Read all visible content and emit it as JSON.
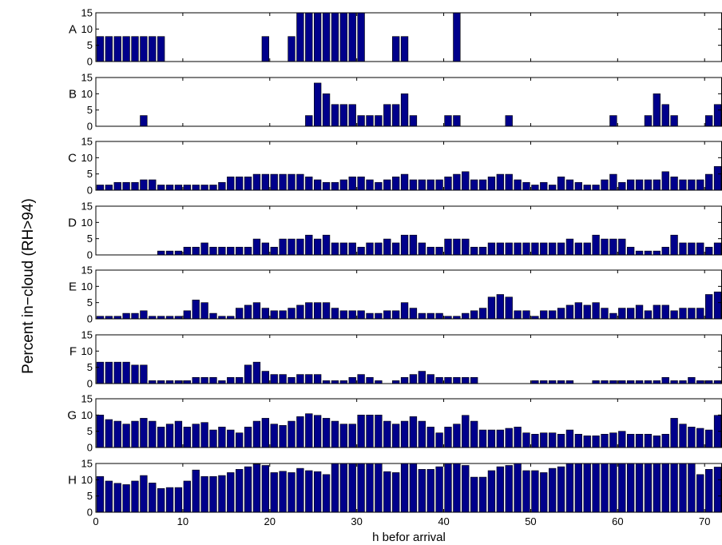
{
  "chart_data": {
    "type": "bar",
    "xlabel": "h befor arrival",
    "ylabel": "Percent in−cloud (RH>94)",
    "x": [
      0.5,
      1.5,
      2.5,
      3.5,
      4.5,
      5.5,
      6.5,
      7.5,
      8.5,
      9.5,
      10.5,
      11.5,
      12.5,
      13.5,
      14.5,
      15.5,
      16.5,
      17.5,
      18.5,
      19.5,
      20.5,
      21.5,
      22.5,
      23.5,
      24.5,
      25.5,
      26.5,
      27.5,
      28.5,
      29.5,
      30.5,
      31.5,
      32.5,
      33.5,
      34.5,
      35.5,
      36.5,
      37.5,
      38.5,
      39.5,
      40.5,
      41.5,
      42.5,
      43.5,
      44.5,
      45.5,
      46.5,
      47.5,
      48.5,
      49.5,
      50.5,
      51.5,
      52.5,
      53.5,
      54.5,
      55.5,
      56.5,
      57.5,
      58.5,
      59.5,
      60.5,
      61.5,
      62.5,
      63.5,
      64.5,
      65.5,
      66.5,
      67.5,
      68.5,
      69.5,
      70.5,
      71.5
    ],
    "xlim": [
      0,
      72
    ],
    "xticks": [
      0,
      10,
      20,
      30,
      40,
      50,
      60,
      70
    ],
    "ylim": [
      0,
      15
    ],
    "yticks": [
      0,
      5,
      10,
      15
    ],
    "series": [
      {
        "name": "A",
        "values": [
          7.7,
          7.7,
          7.7,
          7.7,
          7.7,
          7.7,
          7.7,
          7.7,
          0,
          0,
          0,
          0,
          0,
          0,
          0,
          0,
          0,
          0,
          0,
          7.7,
          0,
          0,
          7.7,
          15,
          15,
          15,
          15,
          15,
          15,
          15,
          15,
          0,
          0,
          0,
          7.7,
          7.7,
          0,
          0,
          0,
          0,
          0,
          15,
          0,
          0,
          0,
          0,
          0,
          0,
          0,
          0,
          0,
          0,
          0,
          0,
          0,
          0,
          0,
          0,
          0,
          0,
          0,
          0,
          0,
          0,
          0,
          0,
          0,
          0,
          0,
          0,
          0,
          0
        ]
      },
      {
        "name": "B",
        "values": [
          0,
          0,
          0,
          0,
          0,
          3.3,
          0,
          0,
          0,
          0,
          0,
          0,
          0,
          0,
          0,
          0,
          0,
          0,
          0,
          0,
          0,
          0,
          0,
          0,
          3.3,
          13.3,
          10,
          6.7,
          6.7,
          6.7,
          3.3,
          3.3,
          3.3,
          6.7,
          6.7,
          10,
          3.3,
          0,
          0,
          0,
          3.3,
          3.3,
          0,
          0,
          0,
          0,
          0,
          3.3,
          0,
          0,
          0,
          0,
          0,
          0,
          0,
          0,
          0,
          0,
          0,
          3.3,
          0,
          0,
          0,
          3.3,
          10,
          6.7,
          3.3,
          0,
          0,
          0,
          3.3,
          6.7
        ]
      },
      {
        "name": "C",
        "values": [
          1.6,
          1.6,
          2.4,
          2.4,
          2.4,
          3.2,
          3.2,
          1.6,
          1.6,
          1.6,
          1.6,
          1.6,
          1.6,
          1.6,
          2.4,
          4.1,
          4.1,
          4.1,
          4.9,
          4.9,
          4.9,
          4.9,
          4.9,
          4.9,
          4.1,
          3.2,
          2.4,
          2.4,
          3.2,
          4.1,
          4.1,
          3.2,
          2.4,
          3.2,
          4.1,
          4.9,
          3.2,
          3.2,
          3.2,
          3.2,
          4.1,
          4.9,
          5.7,
          3.2,
          3.2,
          4.1,
          4.9,
          4.9,
          3.2,
          2.4,
          1.6,
          2.4,
          1.6,
          4.1,
          3.2,
          2.4,
          1.6,
          1.6,
          3.2,
          4.9,
          2.4,
          3.2,
          3.2,
          3.2,
          3.2,
          5.7,
          4.1,
          3.2,
          3.2,
          3.2,
          4.9,
          7.3
        ]
      },
      {
        "name": "D",
        "values": [
          0,
          0,
          0,
          0,
          0,
          0,
          0,
          1.2,
          1.2,
          1.2,
          2.4,
          2.4,
          3.7,
          2.4,
          2.4,
          2.4,
          2.4,
          2.4,
          4.9,
          3.7,
          2.4,
          4.9,
          4.9,
          4.9,
          6.1,
          4.9,
          6.1,
          3.7,
          3.7,
          3.7,
          2.4,
          3.7,
          3.7,
          4.9,
          3.7,
          6.1,
          6.1,
          3.7,
          2.4,
          2.4,
          4.9,
          4.9,
          4.9,
          2.4,
          2.4,
          3.7,
          3.7,
          3.7,
          3.7,
          3.7,
          3.7,
          3.7,
          3.7,
          3.7,
          4.9,
          3.7,
          3.7,
          6.1,
          4.9,
          4.9,
          4.9,
          2.4,
          1.2,
          1.2,
          1.2,
          2.4,
          6.1,
          3.7,
          3.7,
          3.7,
          2.4,
          3.7
        ]
      },
      {
        "name": "E",
        "values": [
          0.8,
          0.8,
          0.8,
          1.7,
          1.7,
          2.5,
          0.8,
          0.8,
          0.8,
          0.8,
          2.5,
          5.8,
          5,
          1.7,
          0.8,
          0.8,
          3.3,
          4.2,
          5,
          3.3,
          2.5,
          2.5,
          3.3,
          4.2,
          5,
          5,
          5,
          3.3,
          2.5,
          2.5,
          2.5,
          1.7,
          1.7,
          2.5,
          2.5,
          5,
          3.3,
          1.7,
          1.7,
          1.7,
          0.8,
          0.8,
          1.7,
          2.5,
          3.3,
          6.7,
          7.5,
          6.7,
          2.5,
          2.5,
          0.8,
          2.5,
          2.5,
          3.3,
          4.2,
          5,
          4.2,
          5,
          3.3,
          1.7,
          3.3,
          3.3,
          4.2,
          2.5,
          4.2,
          4.2,
          2.5,
          3.3,
          3.3,
          3.3,
          7.5,
          8.3
        ]
      },
      {
        "name": "F",
        "values": [
          6.6,
          6.6,
          6.6,
          6.6,
          5.7,
          5.7,
          0.9,
          0.9,
          0.9,
          0.9,
          0.9,
          1.9,
          1.9,
          1.9,
          0.9,
          1.9,
          1.9,
          5.7,
          6.6,
          3.8,
          2.8,
          2.8,
          1.9,
          2.8,
          2.8,
          2.8,
          0.9,
          0.9,
          0.9,
          1.9,
          2.8,
          1.9,
          0.9,
          0,
          0.9,
          1.9,
          2.8,
          3.8,
          2.8,
          1.9,
          1.9,
          1.9,
          1.9,
          1.9,
          0,
          0,
          0,
          0,
          0,
          0,
          0.9,
          0.9,
          0.9,
          0.9,
          0.9,
          0,
          0,
          0.9,
          0.9,
          0.9,
          0.9,
          0.9,
          0.9,
          0.9,
          0.9,
          1.9,
          0.9,
          0.9,
          1.9,
          0.9,
          0.9,
          0.9
        ]
      },
      {
        "name": "G",
        "values": [
          10,
          8.6,
          8.1,
          7.2,
          8.1,
          9,
          8.1,
          6.3,
          7.2,
          8.1,
          6.3,
          7.2,
          7.7,
          5.4,
          6.3,
          5.4,
          4.5,
          6.3,
          8.1,
          9,
          7.2,
          6.8,
          8.1,
          9.5,
          10.4,
          9.9,
          9,
          8.1,
          7.2,
          7.2,
          10,
          10,
          10,
          8.1,
          7.2,
          8.1,
          9.5,
          8.1,
          6.3,
          4.5,
          6.3,
          7.2,
          9.9,
          8.1,
          5.4,
          5.4,
          5.4,
          5.9,
          6.3,
          4.5,
          4.1,
          4.5,
          4.5,
          4.1,
          5.4,
          4.1,
          3.6,
          3.6,
          4.1,
          4.5,
          5,
          4.1,
          4.1,
          4.1,
          3.6,
          4.1,
          9,
          7.2,
          6.3,
          5.9,
          5.4,
          9.9
        ]
      },
      {
        "name": "H",
        "values": [
          11,
          9.6,
          8.9,
          8.5,
          9.6,
          11.3,
          9,
          7.3,
          7.6,
          7.6,
          9.6,
          13,
          11,
          11,
          11.3,
          12.2,
          13.2,
          14,
          14.8,
          14.4,
          12.2,
          12.6,
          12.2,
          13.5,
          12.8,
          12.5,
          11.6,
          15,
          15,
          15,
          15,
          15,
          15,
          12.5,
          12.2,
          15,
          15,
          13.2,
          13.2,
          14,
          15,
          15,
          14.4,
          10.8,
          10.8,
          12.8,
          14,
          14.4,
          15,
          12.8,
          12.8,
          12.2,
          13.5,
          14,
          15,
          15,
          15,
          15,
          15,
          15,
          15,
          15,
          15,
          15,
          15,
          15,
          15,
          15,
          15,
          11.6,
          13.2,
          13.9
        ]
      }
    ]
  }
}
